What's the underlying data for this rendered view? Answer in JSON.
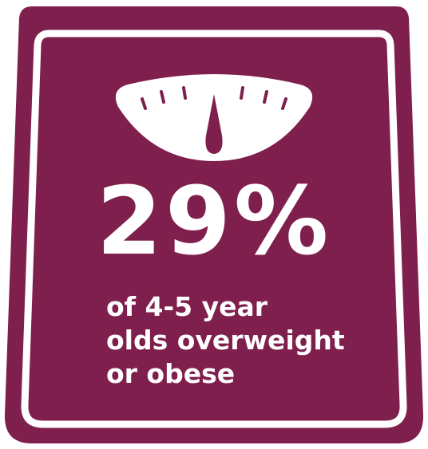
{
  "colors": {
    "background": "#7f1f4d",
    "foreground": "#ffffff"
  },
  "icon": "weighing-scale-icon",
  "stat": {
    "value": "29%",
    "description_lines": [
      "of 4-5 year",
      "olds overweight",
      "or obese"
    ]
  }
}
